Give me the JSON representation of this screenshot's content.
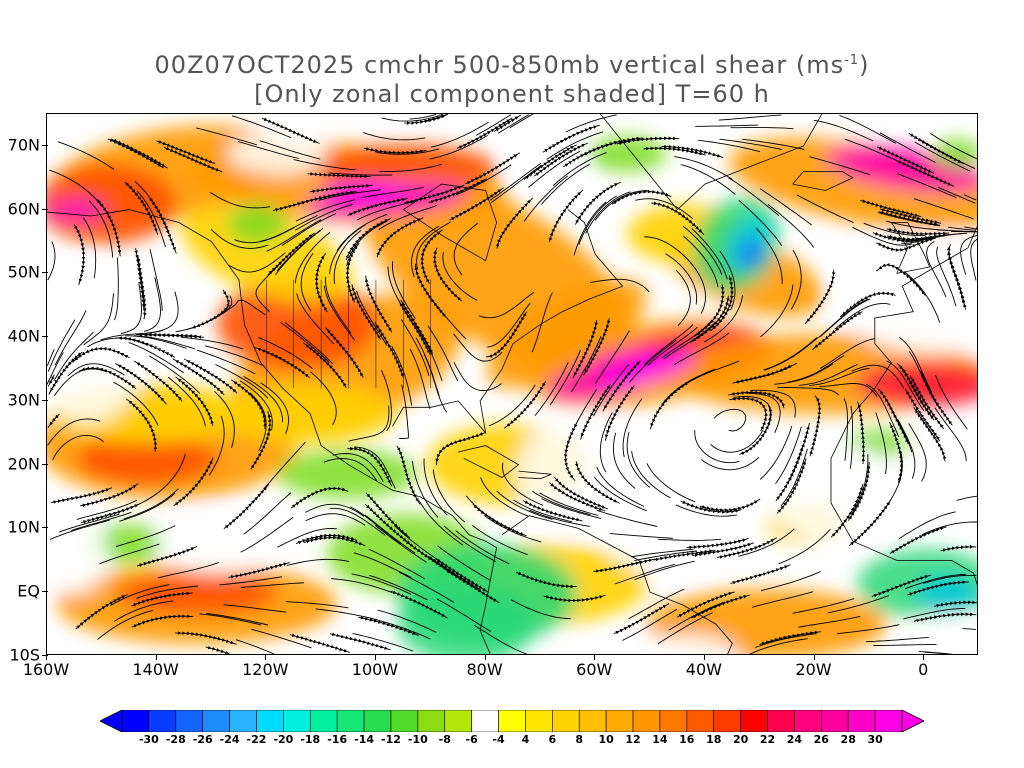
{
  "title": {
    "line1": "00Z07OCT2025 cmchr 500-850mb vertical shear (ms",
    "line1_sup": "-1",
    "line1_end": ")",
    "line2": "[Only zonal component shaded] T=60 h"
  },
  "map": {
    "lon_range": [
      -160,
      10
    ],
    "lat_range": [
      -10,
      75
    ],
    "lat_ticks": [
      {
        "value": 70,
        "label": "70N"
      },
      {
        "value": 60,
        "label": "60N"
      },
      {
        "value": 50,
        "label": "50N"
      },
      {
        "value": 40,
        "label": "40N"
      },
      {
        "value": 30,
        "label": "30N"
      },
      {
        "value": 20,
        "label": "20N"
      },
      {
        "value": 10,
        "label": "10N"
      },
      {
        "value": 0,
        "label": "EQ"
      },
      {
        "value": -10,
        "label": "10S"
      }
    ],
    "lon_ticks": [
      {
        "value": -160,
        "label": "160W"
      },
      {
        "value": -140,
        "label": "140W"
      },
      {
        "value": -120,
        "label": "120W"
      },
      {
        "value": -100,
        "label": "100W"
      },
      {
        "value": -80,
        "label": "80W"
      },
      {
        "value": -60,
        "label": "60W"
      },
      {
        "value": -40,
        "label": "40W"
      },
      {
        "value": -20,
        "label": "20W"
      },
      {
        "value": 0,
        "label": "0"
      }
    ]
  },
  "colorbar": {
    "labels": [
      "-30",
      "-28",
      "-26",
      "-24",
      "-22",
      "-20",
      "-18",
      "-16",
      "-14",
      "-12",
      "-10",
      "-8",
      "-6",
      "-4",
      "4",
      "6",
      "8",
      "10",
      "12",
      "14",
      "16",
      "18",
      "20",
      "22",
      "24",
      "26",
      "28",
      "30"
    ],
    "colors": [
      "#0000ff",
      "#0a3cff",
      "#1464ff",
      "#1e8cff",
      "#28b4ff",
      "#00dcff",
      "#00f0e0",
      "#00f0a0",
      "#14e678",
      "#28dc50",
      "#50dc28",
      "#8cdc14",
      "#b4e60a",
      "#ffffff",
      "#ffff00",
      "#ffe600",
      "#ffd200",
      "#ffbe00",
      "#ffaa00",
      "#ff9600",
      "#ff7800",
      "#ff5a00",
      "#ff3c00",
      "#ff0000",
      "#ff0050",
      "#ff0080",
      "#ff00a0",
      "#ff00c8",
      "#ff00e6"
    ],
    "under_color": "#0000ff",
    "over_color": "#ff00e6"
  }
}
